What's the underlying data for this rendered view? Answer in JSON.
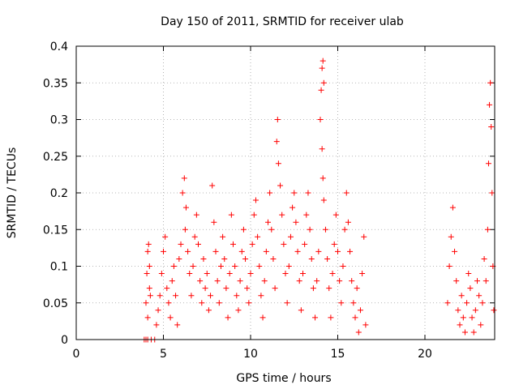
{
  "chart_data": {
    "type": "scatter",
    "title": "Day 150 of 2011, SRMTID for receiver ulab",
    "xlabel": "GPS time / hours",
    "ylabel": "SRMTID / TECUs",
    "xlim": [
      0,
      24
    ],
    "ylim": [
      0,
      0.4
    ],
    "grid": true,
    "marker": "+",
    "color": "#ff0000",
    "xticks": [
      {
        "value": 0,
        "label": "0"
      },
      {
        "value": 5,
        "label": "5"
      },
      {
        "value": 10,
        "label": "10"
      },
      {
        "value": 15,
        "label": "15"
      },
      {
        "value": 20,
        "label": "20"
      }
    ],
    "yticks": [
      {
        "value": 0,
        "label": "0"
      },
      {
        "value": 0.05,
        "label": "0.05"
      },
      {
        "value": 0.1,
        "label": "0.1"
      },
      {
        "value": 0.15,
        "label": "0.15"
      },
      {
        "value": 0.2,
        "label": "0.2"
      },
      {
        "value": 0.25,
        "label": "0.25"
      },
      {
        "value": 0.3,
        "label": "0.3"
      },
      {
        "value": 0.35,
        "label": "0.35"
      },
      {
        "value": 0.4,
        "label": "0.4"
      }
    ],
    "points": [
      [
        3.9,
        0.0
      ],
      [
        4.0,
        0.0
      ],
      [
        4.1,
        0.0
      ],
      [
        4.3,
        0.0
      ],
      [
        4.5,
        0.0
      ],
      [
        4.0,
        0.05
      ],
      [
        4.05,
        0.09
      ],
      [
        4.1,
        0.12
      ],
      [
        4.15,
        0.13
      ],
      [
        4.2,
        0.07
      ],
      [
        4.1,
        0.03
      ],
      [
        4.2,
        0.1
      ],
      [
        4.25,
        0.06
      ],
      [
        4.6,
        0.02
      ],
      [
        4.7,
        0.04
      ],
      [
        4.8,
        0.06
      ],
      [
        4.9,
        0.09
      ],
      [
        5.0,
        0.12
      ],
      [
        5.1,
        0.14
      ],
      [
        5.2,
        0.07
      ],
      [
        5.3,
        0.05
      ],
      [
        5.4,
        0.03
      ],
      [
        5.5,
        0.08
      ],
      [
        5.6,
        0.1
      ],
      [
        5.7,
        0.06
      ],
      [
        5.8,
        0.02
      ],
      [
        5.9,
        0.11
      ],
      [
        6.0,
        0.13
      ],
      [
        6.1,
        0.2
      ],
      [
        6.2,
        0.22
      ],
      [
        6.3,
        0.18
      ],
      [
        6.25,
        0.15
      ],
      [
        6.4,
        0.12
      ],
      [
        6.5,
        0.09
      ],
      [
        6.6,
        0.06
      ],
      [
        6.7,
        0.1
      ],
      [
        6.8,
        0.14
      ],
      [
        6.9,
        0.17
      ],
      [
        7.0,
        0.13
      ],
      [
        7.1,
        0.08
      ],
      [
        7.2,
        0.05
      ],
      [
        7.3,
        0.11
      ],
      [
        7.4,
        0.07
      ],
      [
        7.5,
        0.09
      ],
      [
        7.6,
        0.04
      ],
      [
        7.7,
        0.06
      ],
      [
        7.8,
        0.21
      ],
      [
        7.9,
        0.16
      ],
      [
        8.0,
        0.12
      ],
      [
        8.1,
        0.08
      ],
      [
        8.2,
        0.05
      ],
      [
        8.3,
        0.1
      ],
      [
        8.4,
        0.14
      ],
      [
        8.5,
        0.11
      ],
      [
        8.6,
        0.07
      ],
      [
        8.7,
        0.03
      ],
      [
        8.8,
        0.09
      ],
      [
        8.9,
        0.17
      ],
      [
        9.0,
        0.13
      ],
      [
        9.1,
        0.1
      ],
      [
        9.2,
        0.06
      ],
      [
        9.3,
        0.04
      ],
      [
        9.4,
        0.08
      ],
      [
        9.5,
        0.12
      ],
      [
        9.6,
        0.15
      ],
      [
        9.7,
        0.11
      ],
      [
        9.8,
        0.07
      ],
      [
        9.9,
        0.05
      ],
      [
        10.0,
        0.09
      ],
      [
        10.1,
        0.13
      ],
      [
        10.2,
        0.17
      ],
      [
        10.3,
        0.19
      ],
      [
        10.4,
        0.14
      ],
      [
        10.5,
        0.1
      ],
      [
        10.6,
        0.06
      ],
      [
        10.7,
        0.03
      ],
      [
        10.8,
        0.08
      ],
      [
        10.9,
        0.12
      ],
      [
        11.0,
        0.16
      ],
      [
        11.1,
        0.2
      ],
      [
        11.2,
        0.15
      ],
      [
        11.3,
        0.11
      ],
      [
        11.4,
        0.07
      ],
      [
        11.5,
        0.27
      ],
      [
        11.55,
        0.3
      ],
      [
        11.6,
        0.24
      ],
      [
        11.7,
        0.21
      ],
      [
        11.8,
        0.17
      ],
      [
        11.9,
        0.13
      ],
      [
        12.0,
        0.09
      ],
      [
        12.1,
        0.05
      ],
      [
        12.2,
        0.1
      ],
      [
        12.3,
        0.14
      ],
      [
        12.4,
        0.18
      ],
      [
        12.5,
        0.2
      ],
      [
        12.6,
        0.16
      ],
      [
        12.7,
        0.12
      ],
      [
        12.8,
        0.08
      ],
      [
        12.9,
        0.04
      ],
      [
        13.0,
        0.09
      ],
      [
        13.1,
        0.13
      ],
      [
        13.2,
        0.17
      ],
      [
        13.3,
        0.2
      ],
      [
        13.4,
        0.15
      ],
      [
        13.5,
        0.11
      ],
      [
        13.6,
        0.07
      ],
      [
        13.7,
        0.03
      ],
      [
        13.8,
        0.08
      ],
      [
        13.9,
        0.12
      ],
      [
        14.0,
        0.3
      ],
      [
        14.05,
        0.34
      ],
      [
        14.1,
        0.37
      ],
      [
        14.15,
        0.38
      ],
      [
        14.2,
        0.35
      ],
      [
        14.1,
        0.26
      ],
      [
        14.15,
        0.22
      ],
      [
        14.2,
        0.19
      ],
      [
        14.3,
        0.15
      ],
      [
        14.4,
        0.11
      ],
      [
        14.5,
        0.07
      ],
      [
        14.6,
        0.03
      ],
      [
        14.7,
        0.09
      ],
      [
        14.8,
        0.13
      ],
      [
        14.9,
        0.17
      ],
      [
        15.0,
        0.12
      ],
      [
        15.1,
        0.08
      ],
      [
        15.2,
        0.05
      ],
      [
        15.3,
        0.1
      ],
      [
        15.4,
        0.15
      ],
      [
        15.5,
        0.2
      ],
      [
        15.6,
        0.16
      ],
      [
        15.7,
        0.12
      ],
      [
        15.8,
        0.08
      ],
      [
        15.9,
        0.05
      ],
      [
        16.0,
        0.03
      ],
      [
        16.1,
        0.07
      ],
      [
        16.2,
        0.01
      ],
      [
        16.3,
        0.04
      ],
      [
        16.4,
        0.09
      ],
      [
        16.5,
        0.14
      ],
      [
        16.6,
        0.02
      ],
      [
        21.3,
        0.05
      ],
      [
        21.4,
        0.1
      ],
      [
        21.5,
        0.14
      ],
      [
        21.6,
        0.18
      ],
      [
        21.7,
        0.12
      ],
      [
        21.8,
        0.08
      ],
      [
        21.9,
        0.04
      ],
      [
        22.0,
        0.02
      ],
      [
        22.1,
        0.06
      ],
      [
        22.2,
        0.03
      ],
      [
        22.3,
        0.01
      ],
      [
        22.4,
        0.05
      ],
      [
        22.5,
        0.09
      ],
      [
        22.6,
        0.07
      ],
      [
        22.7,
        0.03
      ],
      [
        22.8,
        0.01
      ],
      [
        22.9,
        0.04
      ],
      [
        23.0,
        0.08
      ],
      [
        23.1,
        0.06
      ],
      [
        23.2,
        0.02
      ],
      [
        23.3,
        0.05
      ],
      [
        23.4,
        0.11
      ],
      [
        23.5,
        0.08
      ],
      [
        23.6,
        0.15
      ],
      [
        23.65,
        0.24
      ],
      [
        23.7,
        0.32
      ],
      [
        23.75,
        0.35
      ],
      [
        23.8,
        0.29
      ],
      [
        23.85,
        0.2
      ],
      [
        23.9,
        0.1
      ],
      [
        23.95,
        0.04
      ]
    ]
  }
}
